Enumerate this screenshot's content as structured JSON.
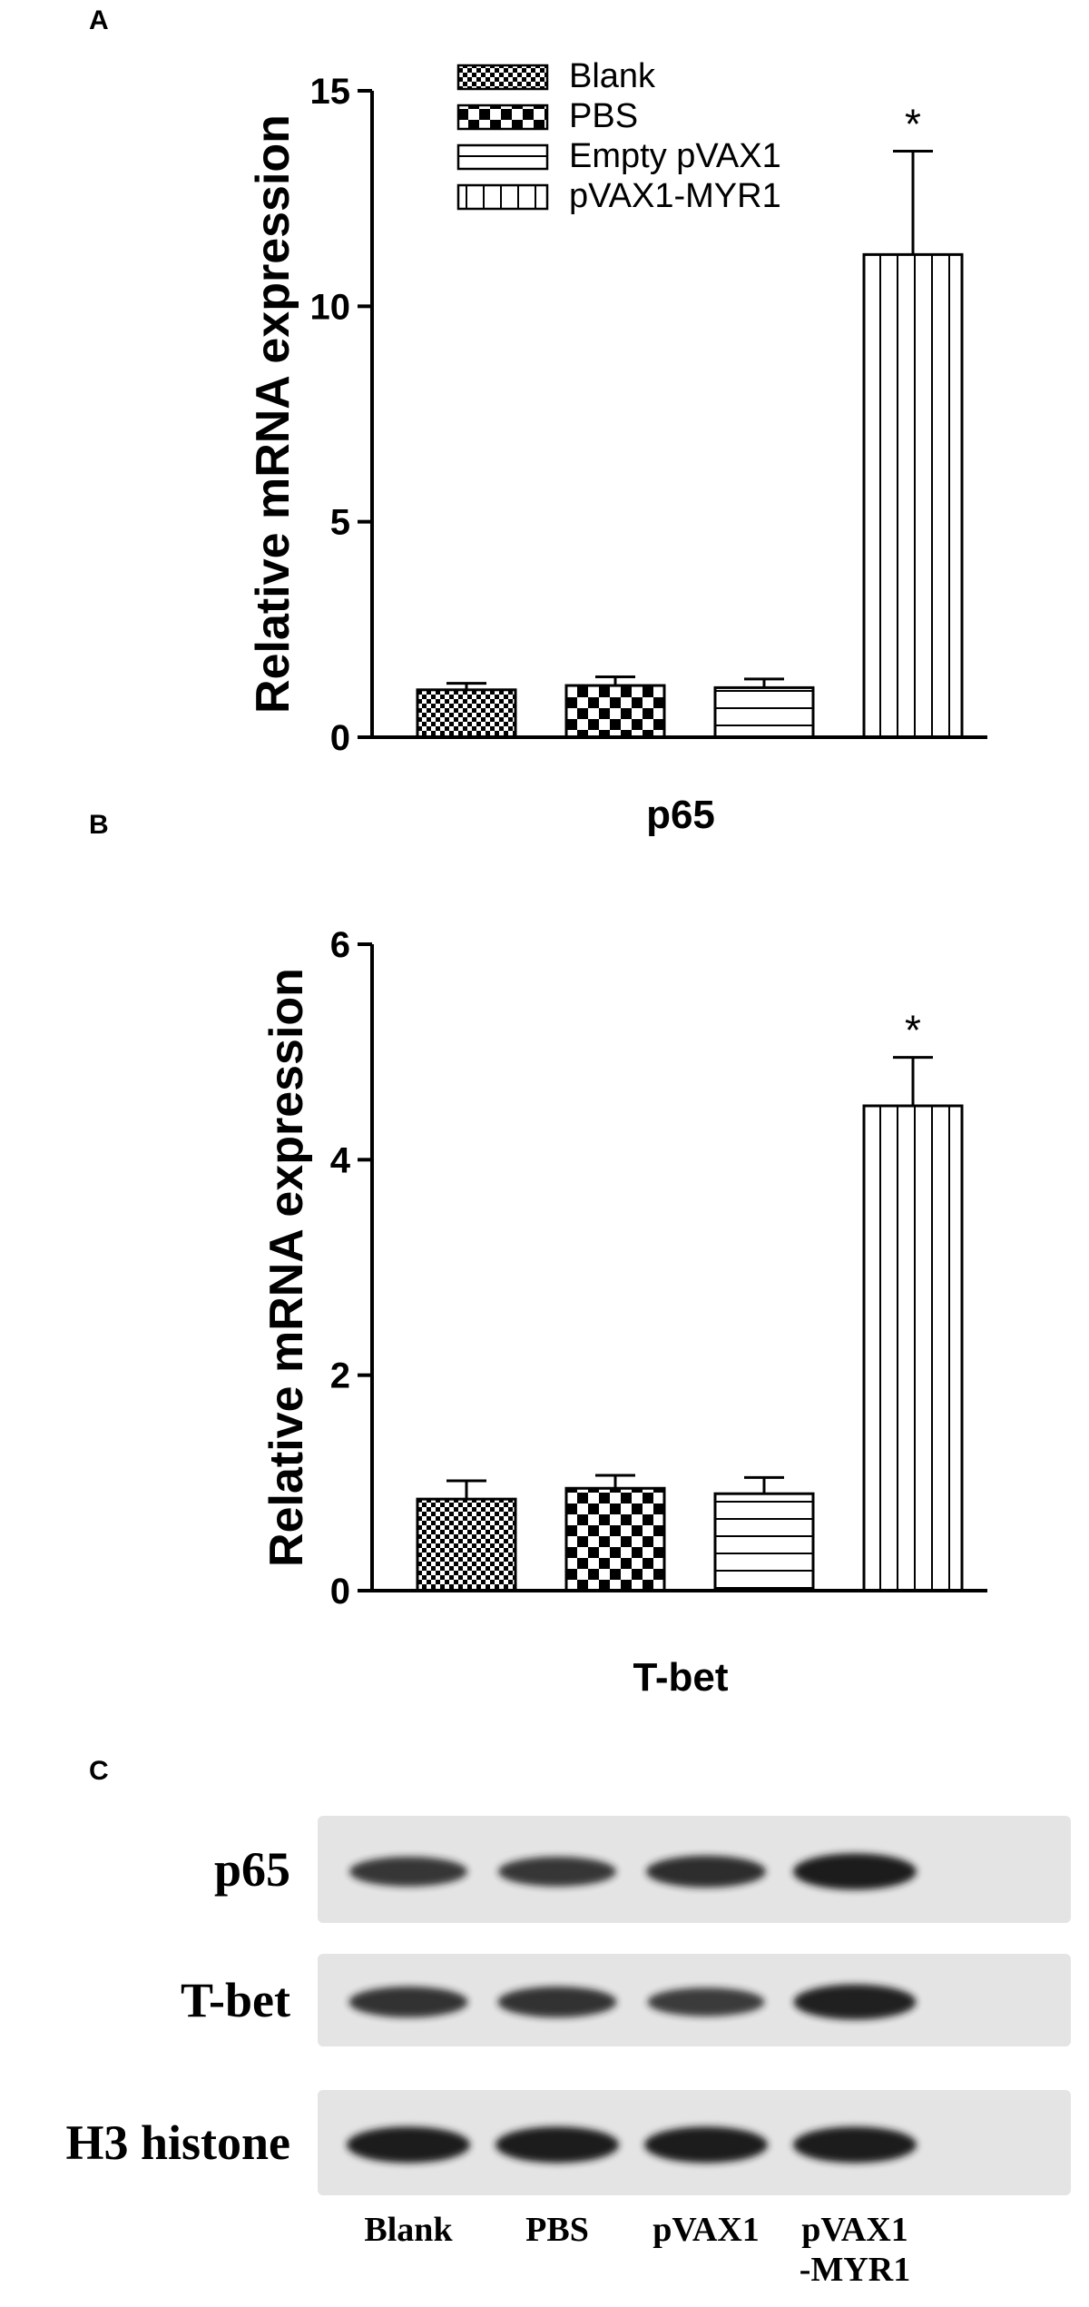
{
  "chart_data": [
    {
      "type": "bar",
      "panel": "A",
      "categories": [
        "Blank",
        "PBS",
        "Empty pVAX1",
        "pVAX1-MYR1"
      ],
      "series": [
        {
          "name": "",
          "values": [
            1.1,
            1.2,
            1.15,
            11.2
          ],
          "errors": [
            0.15,
            0.2,
            0.2,
            2.4
          ]
        }
      ],
      "xlabel": "p65",
      "ylabel": "Relative mRNA expression",
      "ylim": [
        0,
        15
      ],
      "yticks": [
        "0",
        "5",
        "10",
        "15"
      ],
      "significance": [
        "",
        "",
        "",
        "*"
      ],
      "legend": {
        "placement": "top-left",
        "entries": [
          "Blank",
          "PBS",
          "Empty pVAX1",
          "pVAX1-MYR1"
        ]
      },
      "grid": false
    },
    {
      "type": "bar",
      "panel": "B",
      "categories": [
        "Blank",
        "PBS",
        "Empty pVAX1",
        "pVAX1-MYR1"
      ],
      "series": [
        {
          "name": "",
          "values": [
            0.85,
            0.95,
            0.9,
            4.5
          ],
          "errors": [
            0.17,
            0.12,
            0.15,
            0.45
          ]
        }
      ],
      "xlabel": "T-bet",
      "ylabel": "Relative mRNA expression",
      "ylim": [
        0,
        6
      ],
      "yticks": [
        "0",
        "2",
        "4",
        "6"
      ],
      "significance": [
        "",
        "",
        "",
        "*"
      ],
      "grid": false
    }
  ],
  "panels": {
    "a_letter": "A",
    "b_letter": "B",
    "c_letter": "C"
  },
  "blot": {
    "rows": [
      {
        "label": "p65",
        "intensity": [
          0.7,
          0.7,
          0.8,
          1.0
        ]
      },
      {
        "label": "T-bet",
        "intensity": [
          0.75,
          0.75,
          0.65,
          0.95
        ]
      },
      {
        "label": "H3 histone",
        "intensity": [
          1.0,
          1.0,
          1.0,
          1.0
        ]
      }
    ],
    "lanes": [
      {
        "line1": "Blank",
        "line2": ""
      },
      {
        "line1": "PBS",
        "line2": ""
      },
      {
        "line1": "pVAX1",
        "line2": ""
      },
      {
        "line1": "pVAX1",
        "line2": "-MYR1"
      }
    ]
  },
  "colors": {
    "ink": "#000000",
    "background": "#ffffff",
    "blot_membrane": "#e4e4e4",
    "blot_band": "#1a1a1a"
  }
}
